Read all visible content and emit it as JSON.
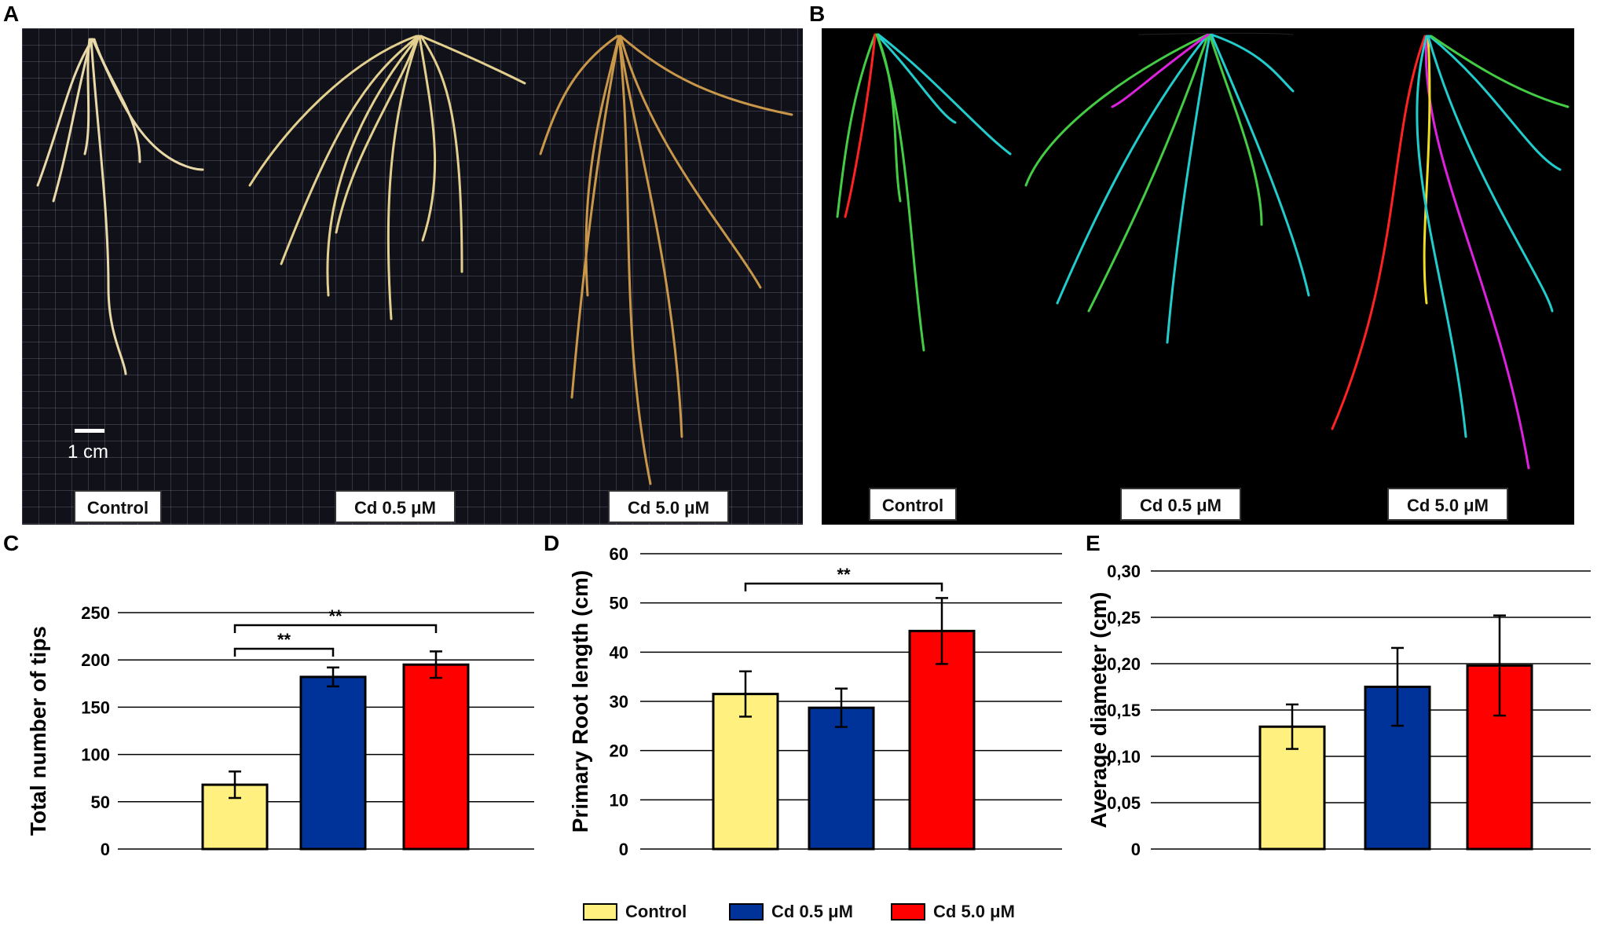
{
  "panels": {
    "a": "A",
    "b": "B",
    "c": "C",
    "d": "D",
    "e": "E"
  },
  "photo_a": {
    "scale_label": "1 cm",
    "labels": [
      "Control",
      "Cd 0.5 μM",
      "Cd 5.0 μM"
    ]
  },
  "photo_b": {
    "labels": [
      "Control",
      "Cd 0.5 μM",
      "Cd 5.0 μM"
    ]
  },
  "colors": {
    "control": "#fff07f",
    "cd05": "#003399",
    "cd50": "#ff0000"
  },
  "chart_data": [
    {
      "type": "bar",
      "panel": "C",
      "categories": [
        "Control",
        "Cd 0.5 μM",
        "Cd 5.0 μM"
      ],
      "values": [
        68,
        182,
        195
      ],
      "errors": [
        14,
        10,
        14
      ],
      "ylabel": "Total number of tips",
      "ylim": [
        0,
        250
      ],
      "yticks": [
        "0",
        "50",
        "100",
        "150",
        "200",
        "250"
      ],
      "grid": true,
      "significance": [
        {
          "from": 0,
          "to": 1,
          "label": "**"
        },
        {
          "from": 0,
          "to": 2,
          "label": "**"
        }
      ]
    },
    {
      "type": "bar",
      "panel": "D",
      "categories": [
        "Control",
        "Cd 0.5 μM",
        "Cd 5.0 μM"
      ],
      "values": [
        31.5,
        28.7,
        44.3
      ],
      "errors": [
        4.6,
        3.9,
        6.7
      ],
      "ylabel": "Primary Root length (cm)",
      "ylim": [
        0,
        60
      ],
      "yticks": [
        "0",
        "10",
        "20",
        "30",
        "40",
        "50",
        "60"
      ],
      "grid": true,
      "significance": [
        {
          "from": 0,
          "to": 2,
          "label": "**"
        }
      ]
    },
    {
      "type": "bar",
      "panel": "E",
      "categories": [
        "Control",
        "Cd 0.5 μM",
        "Cd 5.0 μM"
      ],
      "values": [
        0.132,
        0.175,
        0.198
      ],
      "errors": [
        0.024,
        0.042,
        0.054
      ],
      "ylabel": "Average diameter (cm)",
      "ylim": [
        0,
        0.3
      ],
      "yticks": [
        "0",
        "0,05",
        "0,10",
        "0,15",
        "0,20",
        "0,25",
        "0,30"
      ],
      "grid": true,
      "significance": []
    }
  ],
  "legend": [
    {
      "label": "Control",
      "color": "#fff07f"
    },
    {
      "label": "Cd 0.5 μM",
      "color": "#003399"
    },
    {
      "label": "Cd 5.0 μM",
      "color": "#ff0000"
    }
  ]
}
